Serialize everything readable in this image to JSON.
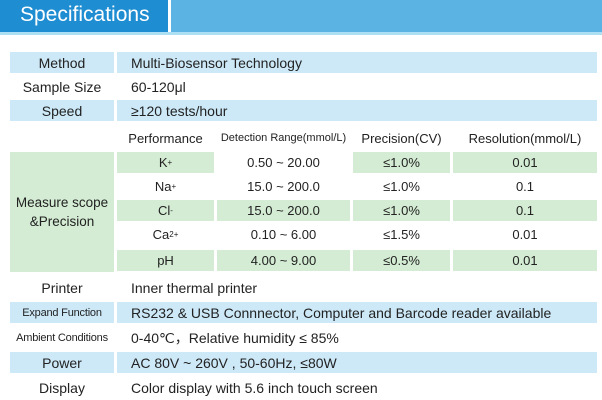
{
  "header": {
    "title": "Specifications"
  },
  "specs_top": [
    {
      "label": "Method",
      "value": "Multi-Biosensor Technology"
    },
    {
      "label": "Sample Size",
      "value": "60-120μl"
    },
    {
      "label": "Speed",
      "value": "≥120 tests/hour"
    }
  ],
  "measure": {
    "label_line1": "Measure scope",
    "label_line2": "&Precision",
    "headers": [
      "Performance",
      "Detection Range(mmol/L)",
      "Precision(CV)",
      "Resolution(mmol/L)"
    ],
    "rows": [
      {
        "name": "K",
        "sup": "+",
        "range": "0.50 ~ 20.00",
        "precision": "≤1.0%",
        "resolution": "0.01"
      },
      {
        "name": "Na",
        "sup": "+",
        "range": "15.0 ~ 200.0",
        "precision": "≤1.0%",
        "resolution": "0.1"
      },
      {
        "name": "Cl",
        "sup": "-",
        "range": "15.0 ~ 200.0",
        "precision": "≤1.0%",
        "resolution": "0.1"
      },
      {
        "name": "Ca",
        "sup": "2+",
        "range": "0.10 ~ 6.00",
        "precision": "≤1.5%",
        "resolution": "0.01"
      },
      {
        "name": "pH",
        "sup": "",
        "range": "4.00 ~ 9.00",
        "precision": "≤0.5%",
        "resolution": "0.01"
      }
    ]
  },
  "specs_bottom": [
    {
      "label": "Printer",
      "value": "Inner thermal printer"
    },
    {
      "label": "Expand Function",
      "value": "RS232 & USB Connnector, Computer and Barcode reader available"
    },
    {
      "label": "Ambient Conditions",
      "value": "0-40℃，Relative humidity ≤ 85%"
    },
    {
      "label": "Power",
      "value": "AC 80V ~ 260V , 50-60Hz, ≤80W"
    },
    {
      "label": "Display",
      "value": "Color display with 5.6 inch touch screen"
    }
  ],
  "colors": {
    "banner_dark": "#1f8dd1",
    "banner_light": "#5ab3e2",
    "row_blue": "#cde9f8",
    "row_green": "#d3ecd3"
  }
}
